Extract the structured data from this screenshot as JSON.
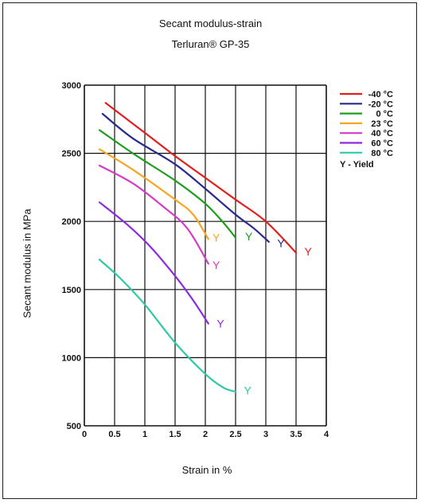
{
  "chart_data": {
    "type": "line",
    "title": "Secant modulus-strain",
    "subtitle": "Terluran® GP-35",
    "xlabel": "Strain in %",
    "ylabel": "Secant modulus in MPa",
    "xlim": [
      0,
      4
    ],
    "ylim": [
      500,
      3000
    ],
    "xticks": [
      "0",
      "0.5",
      "1",
      "1.5",
      "2",
      "2.5",
      "3",
      "3.5",
      "4"
    ],
    "yticks": [
      "500",
      "1000",
      "1500",
      "2000",
      "2500",
      "3000"
    ],
    "grid": true,
    "legend_position": "right",
    "yield_note": "Y - Yield",
    "yield_marker": "Y",
    "series": [
      {
        "name": "-40 °C",
        "color": "#e0201f",
        "x": [
          0.35,
          1.0,
          1.5,
          2.0,
          2.5,
          3.0,
          3.5
        ],
        "y": [
          2870,
          2650,
          2480,
          2320,
          2160,
          2000,
          1770
        ],
        "yield_label_at": [
          3.7,
          1780
        ]
      },
      {
        "name": "-20 °C",
        "color": "#2a2a8c",
        "x": [
          0.3,
          0.8,
          1.5,
          2.0,
          2.5,
          2.8,
          3.05
        ],
        "y": [
          2790,
          2610,
          2420,
          2240,
          2050,
          1950,
          1850
        ],
        "yield_label_at": [
          3.25,
          1840
        ]
      },
      {
        "name": "0 °C",
        "color": "#1e9e1e",
        "x": [
          0.25,
          0.8,
          1.5,
          2.0,
          2.3,
          2.5
        ],
        "y": [
          2670,
          2500,
          2300,
          2130,
          1990,
          1880
        ],
        "yield_label_at": [
          2.72,
          1890
        ]
      },
      {
        "name": "23 °C",
        "color": "#f5a623",
        "x": [
          0.25,
          0.8,
          1.5,
          1.8,
          2.05
        ],
        "y": [
          2530,
          2380,
          2160,
          2050,
          1870
        ],
        "yield_label_at": [
          2.18,
          1880
        ]
      },
      {
        "name": "40 °C",
        "color": "#d63cc7",
        "x": [
          0.25,
          0.8,
          1.3,
          1.7,
          2.05
        ],
        "y": [
          2410,
          2280,
          2110,
          1950,
          1690
        ],
        "yield_label_at": [
          2.18,
          1680
        ]
      },
      {
        "name": "60 °C",
        "color": "#8a2be2",
        "x": [
          0.25,
          0.7,
          1.1,
          1.5,
          1.8,
          2.05
        ],
        "y": [
          2140,
          1980,
          1810,
          1600,
          1420,
          1250
        ],
        "yield_label_at": [
          2.25,
          1250
        ]
      },
      {
        "name": "80 °C",
        "color": "#2ec9a8",
        "x": [
          0.25,
          0.6,
          1.0,
          1.5,
          2.0,
          2.3,
          2.5
        ],
        "y": [
          1720,
          1580,
          1390,
          1110,
          880,
          780,
          750
        ],
        "yield_label_at": [
          2.7,
          760
        ]
      }
    ]
  }
}
